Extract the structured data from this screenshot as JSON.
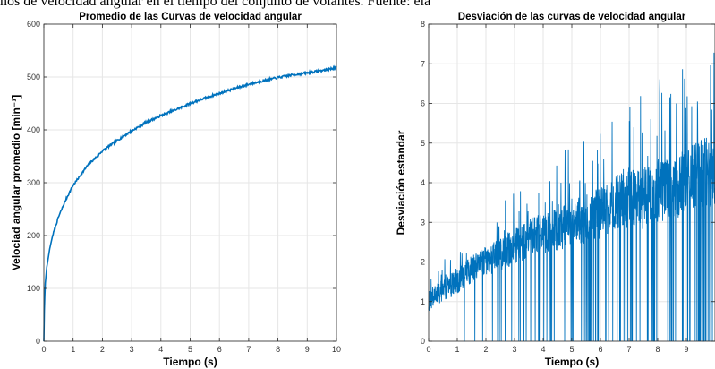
{
  "page_caption": "nos de velocidad angular en el tiempo del conjunto de volantes. Fuente: ela",
  "colors": {
    "series": "#0072BD",
    "grid": "#e6e6e6",
    "axis": "#262626"
  },
  "chart_data": [
    {
      "type": "line",
      "title": "Promedio de las Curvas de velocidad angular",
      "xlabel": "Tiempo (s)",
      "ylabel": "Velociad angular promedio [min⁻¹]",
      "xlim": [
        0,
        10
      ],
      "ylim": [
        0,
        600
      ],
      "xticks": [
        0,
        1,
        2,
        3,
        4,
        5,
        6,
        7,
        8,
        9,
        10
      ],
      "yticks": [
        0,
        100,
        200,
        300,
        400,
        500,
        600
      ],
      "grid": true,
      "series": [
        {
          "x": [
            0,
            0.02,
            0.05,
            0.1,
            0.2,
            0.3,
            0.5,
            0.75,
            1,
            1.5,
            2,
            2.5,
            3,
            3.5,
            4,
            4.5,
            5,
            5.5,
            6,
            6.5,
            7,
            7.5,
            8,
            8.5,
            9,
            9.5,
            10
          ],
          "values": [
            0,
            70,
            110,
            140,
            175,
            200,
            235,
            268,
            295,
            333,
            360,
            380,
            398,
            414,
            427,
            438,
            450,
            460,
            469,
            478,
            486,
            493,
            499,
            504,
            508,
            512,
            518
          ]
        }
      ]
    },
    {
      "type": "line",
      "title": "Desviación de las curvas de velocidad angular",
      "xlabel": "Tiempo (s)",
      "ylabel": "Desviación estandar",
      "xlim": [
        0,
        10
      ],
      "ylim": [
        0,
        8
      ],
      "xticks": [
        0,
        1,
        2,
        3,
        4,
        5,
        6,
        7,
        8,
        9
      ],
      "yticks": [
        0,
        1,
        2,
        3,
        4,
        5,
        6,
        7,
        8
      ],
      "grid": true,
      "series": [
        {
          "x": [
            0,
            0.5,
            1,
            1.5,
            2,
            2.5,
            3,
            3.5,
            4,
            4.5,
            5,
            5.5,
            6,
            6.5,
            7,
            7.5,
            8,
            8.5,
            9,
            9.5,
            9.9
          ],
          "values": [
            1.0,
            1.3,
            1.5,
            1.8,
            2.0,
            2.2,
            2.4,
            2.6,
            2.7,
            2.8,
            3.0,
            3.1,
            3.2,
            3.5,
            3.6,
            3.6,
            3.8,
            3.8,
            4.0,
            4.2,
            4.3
          ]
        }
      ]
    }
  ]
}
